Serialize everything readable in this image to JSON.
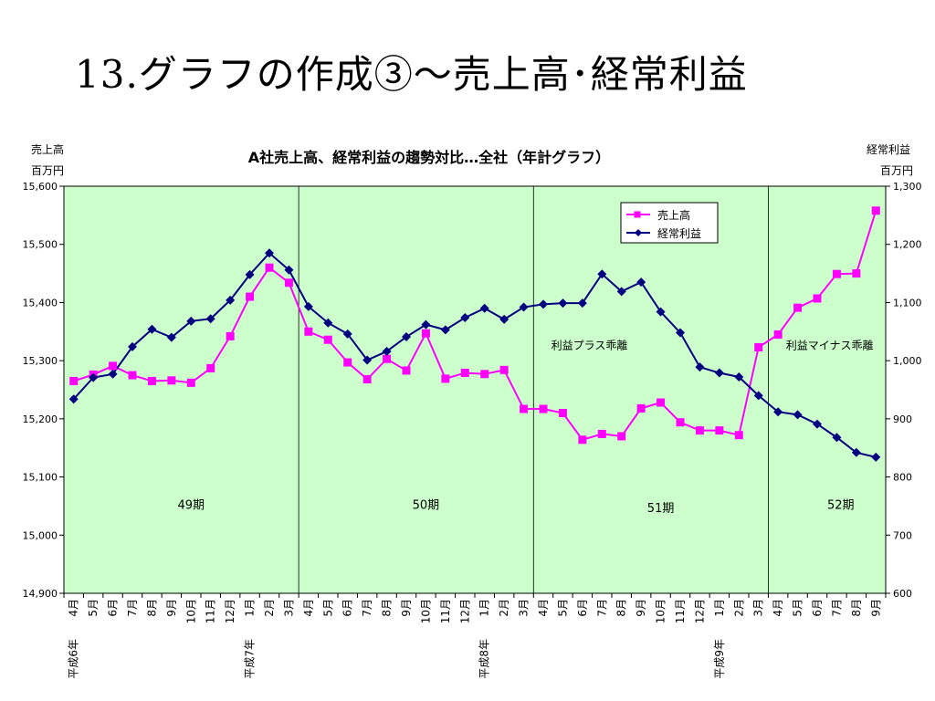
{
  "slide": {
    "title": "13.グラフの作成③～売上高･経常利益"
  },
  "chart_data": {
    "type": "line",
    "title": "A社売上高、経常利益の趨勢対比…全社（年計グラフ）",
    "y_left_label_line1": "売上高",
    "y_left_label_line2": "百万円",
    "y_right_label_line1": "経常利益",
    "y_right_label_line2": "百万円",
    "ylim_left": [
      14900,
      15600
    ],
    "ylim_right": [
      600,
      1300
    ],
    "y_left_ticks": [
      "15,600",
      "15,500",
      "15,400",
      "15,300",
      "15,200",
      "15,100",
      "15,000",
      "14,900"
    ],
    "y_right_ticks": [
      "1,300",
      "1,200",
      "1,100",
      "1,000",
      "900",
      "800",
      "700",
      "600"
    ],
    "categories": [
      "4月",
      "5月",
      "6月",
      "7月",
      "8月",
      "9月",
      "10月",
      "11月",
      "12月",
      "1月",
      "2月",
      "3月",
      "4月",
      "5月",
      "6月",
      "7月",
      "8月",
      "9月",
      "10月",
      "11月",
      "12月",
      "1月",
      "2月",
      "3月",
      "4月",
      "5月",
      "6月",
      "7月",
      "8月",
      "9月",
      "10月",
      "11月",
      "12月",
      "1月",
      "2月",
      "3月",
      "4月",
      "5月",
      "6月",
      "7月",
      "8月",
      "9月"
    ],
    "year_labels": [
      {
        "index": 0,
        "label": "平成6年"
      },
      {
        "index": 9,
        "label": "平成7年"
      },
      {
        "index": 21,
        "label": "平成8年"
      },
      {
        "index": 33,
        "label": "平成9年"
      }
    ],
    "period_dividers": [
      11.5,
      23.5,
      35.5
    ],
    "period_labels": [
      {
        "label": "49期",
        "center": 6.0,
        "value": 15045
      },
      {
        "label": "50期",
        "center": 18.0,
        "value": 15045
      },
      {
        "label": "51期",
        "center": 30.0,
        "value": 15040
      },
      {
        "label": "52期",
        "center": 39.2,
        "value": 15045
      }
    ],
    "annotations": [
      {
        "label": "利益プラス乖離",
        "index": 24.4,
        "value": 15320
      },
      {
        "label": "利益マイナス乖離",
        "index": 36.4,
        "value": 15320
      }
    ],
    "grid": false,
    "legend_position": "top-right",
    "series": [
      {
        "name": "売上高",
        "axis": "left",
        "color": "#ff00ff",
        "marker": "square",
        "values": [
          15265,
          15276,
          15291,
          15275,
          15265,
          15266,
          15262,
          15287,
          15342,
          15410,
          15460,
          15434,
          15350,
          15336,
          15297,
          15268,
          15303,
          15283,
          15347,
          15269,
          15279,
          15277,
          15284,
          15217,
          15217,
          15210,
          15164,
          15174,
          15170,
          15218,
          15228,
          15194,
          15180,
          15180,
          15172,
          15323,
          15345,
          15391,
          15407,
          15449,
          15450,
          15558
        ]
      },
      {
        "name": "経常利益",
        "axis": "right",
        "color": "#000080",
        "marker": "diamond",
        "values": [
          934,
          971,
          977,
          1024,
          1054,
          1040,
          1068,
          1072,
          1104,
          1148,
          1185,
          1156,
          1093,
          1065,
          1046,
          1001,
          1016,
          1041,
          1062,
          1053,
          1074,
          1090,
          1071,
          1092,
          1097,
          1099,
          1099,
          1149,
          1119,
          1135,
          1084,
          1048,
          989,
          979,
          972,
          940,
          912,
          907,
          891,
          868,
          842,
          834
        ]
      }
    ]
  }
}
